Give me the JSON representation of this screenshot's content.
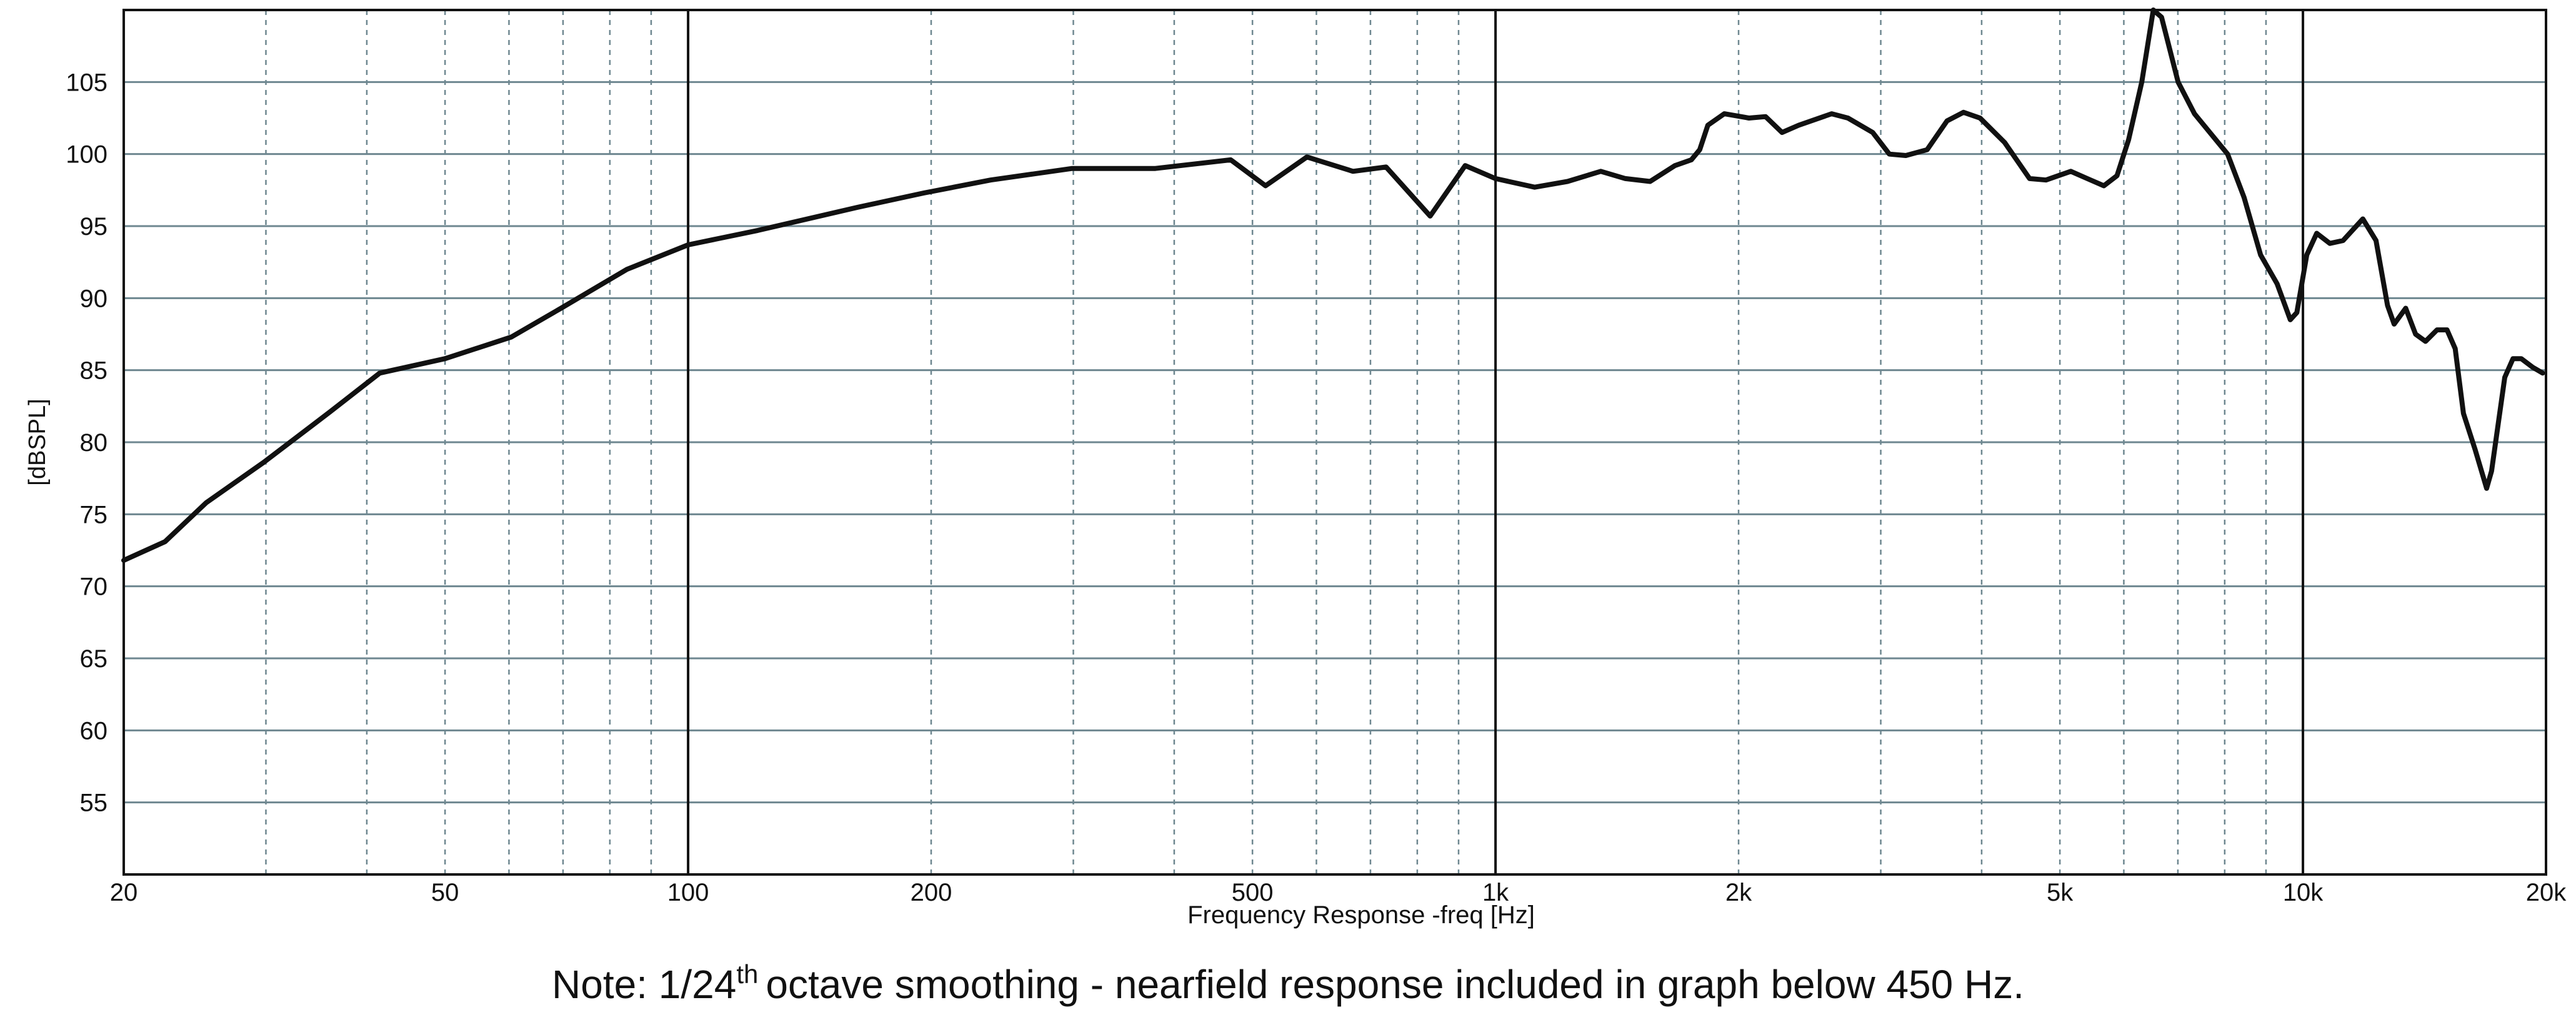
{
  "chart_data": {
    "type": "line",
    "xlabel": "Frequency Response -freq [Hz]",
    "ylabel": "[dBSPL]",
    "note": {
      "prefix": "Note: 1/24",
      "superscript": "th",
      "text": "octave smoothing - nearfield response included in graph below 450 Hz."
    },
    "xscale": "log",
    "xlim": [
      20,
      20000
    ],
    "ylim": [
      50,
      110
    ],
    "xticks": [
      20,
      50,
      100,
      200,
      500,
      {
        "value": 1000,
        "label": "1k"
      },
      {
        "value": 2000,
        "label": "2k"
      },
      {
        "value": 5000,
        "label": "5k"
      },
      {
        "value": 10000,
        "label": "10k"
      },
      {
        "value": 20000,
        "label": "20k"
      }
    ],
    "minor_xticks": [
      30,
      40,
      60,
      70,
      80,
      90,
      300,
      400,
      600,
      700,
      800,
      900,
      3000,
      4000,
      6000,
      7000,
      8000,
      9000
    ],
    "yticks": [
      55,
      60,
      65,
      70,
      75,
      80,
      85,
      90,
      95,
      100,
      105
    ],
    "grid": true,
    "series": [
      {
        "color": "#111111",
        "x": [
          20,
          22.5,
          25.3,
          29.8,
          36,
          41.5,
          50,
          60.4,
          69.6,
          84,
          100,
          122,
          162,
          196,
          237,
          299,
          379,
          470,
          519,
          584,
          666,
          732,
          830,
          917,
          1000,
          1118,
          1228,
          1350,
          1448,
          1554,
          1668,
          1748,
          1790,
          1832,
          1920,
          2060,
          2160,
          2264,
          2374,
          2608,
          2732,
          2932,
          3074,
          3222,
          3424,
          3624,
          3798,
          3982,
          4272,
          4586,
          4806,
          5158,
          5406,
          5668,
          5884,
          6082,
          6316,
          6526,
          6682,
          7004,
          7340,
          8066,
          8454,
          8862,
          9290,
          9646,
          9828,
          10110,
          10400,
          10798,
          11212,
          11862,
          12316,
          12728,
          12970,
          13404,
          13788,
          14184,
          14660,
          15080,
          15438,
          15806,
          16336,
          16884,
          17124,
          17780,
          18204,
          18636,
          19258,
          19812
        ],
        "values": [
          71.8,
          73.1,
          75.8,
          78.6,
          82.1,
          84.8,
          85.8,
          87.3,
          89.3,
          92,
          93.7,
          94.7,
          96.3,
          97.3,
          98.2,
          99,
          99,
          99.6,
          97.8,
          99.8,
          98.8,
          99.1,
          95.7,
          99.2,
          98.3,
          97.7,
          98.1,
          98.8,
          98.3,
          98.1,
          99.2,
          99.6,
          100.3,
          102,
          102.8,
          102.5,
          102.6,
          101.5,
          102,
          102.8,
          102.5,
          101.5,
          100,
          99.9,
          100.3,
          102.3,
          102.9,
          102.5,
          100.8,
          98.3,
          98.2,
          98.8,
          98.3,
          97.8,
          98.5,
          101,
          105,
          110,
          109.5,
          105,
          102.8,
          100,
          97,
          93,
          91,
          88.5,
          89,
          93,
          94.5,
          93.8,
          94,
          95.5,
          94,
          89.5,
          88.2,
          89.3,
          87.5,
          87,
          87.8,
          87.8,
          86.5,
          82,
          79.5,
          76.8,
          78,
          84.5,
          85.8,
          85.8,
          85.2,
          84.8
        ]
      }
    ]
  }
}
